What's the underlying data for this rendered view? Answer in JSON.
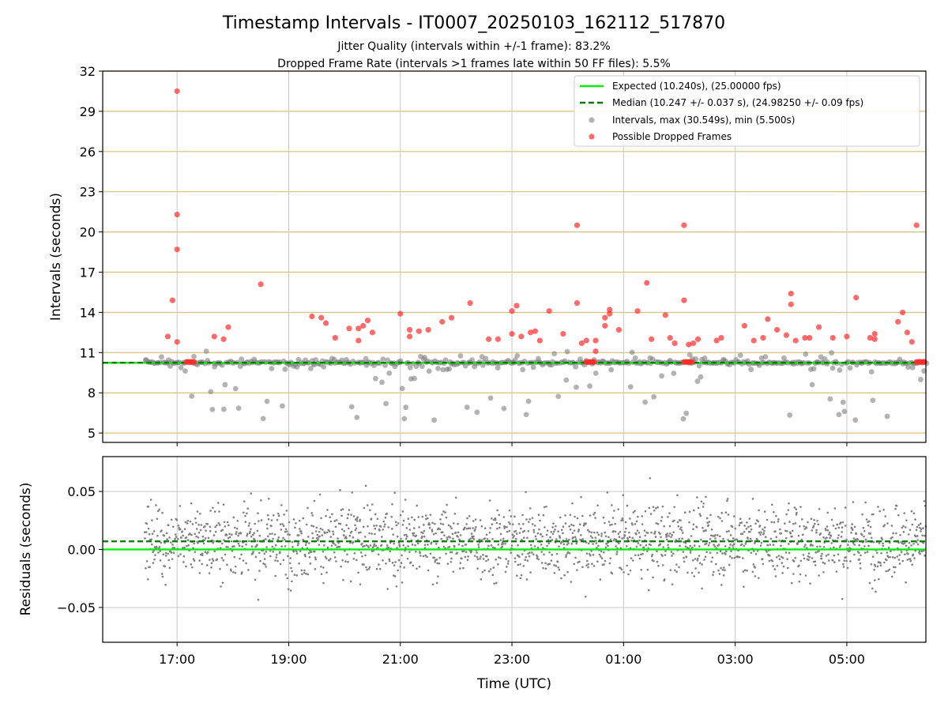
{
  "figure": {
    "title": "Timestamp Intervals - IT0007_20250103_162112_517870",
    "subtitle_1": "Jitter Quality (intervals within +/-1 frame): 83.2%",
    "subtitle_2": "Dropped Frame Rate (intervals >1 frames late within 50 FF files): 5.5%"
  },
  "legend": {
    "expected": "Expected (10.240s), (25.00000 fps)",
    "median": "Median (10.247 +/- 0.037 s), (24.98250 +/- 0.09 fps)",
    "intervals": "Intervals, max (30.549s), min (5.500s)",
    "dropped": "Possible Dropped Frames"
  },
  "colors": {
    "expected": "#00ee00",
    "median": "#007a00",
    "intervals": "#808080",
    "dropped": "#ff2b2b",
    "hgrid": "#d6c07a",
    "vgrid": "#c8c8c8"
  },
  "chart_data": [
    {
      "type": "scatter",
      "name_ref": "top-panel",
      "xlabel": "",
      "ylabel": "Intervals (seconds)",
      "x_range": [
        "15:40",
        "06:25"
      ],
      "ylim": [
        4.3,
        32
      ],
      "yticks": [
        5,
        8,
        11,
        14,
        17,
        20,
        23,
        26,
        29,
        32
      ],
      "ytick_labels": [
        "5",
        "8",
        "11",
        "14",
        "17",
        "20",
        "23",
        "26",
        "29",
        "32"
      ],
      "hlines": {
        "expected": 10.24,
        "median": 10.247
      },
      "grid": "horizontal and vertical",
      "legend_position": "top-right",
      "series": [
        {
          "name": "Possible Dropped Frames",
          "points": [
            [
              "17:00",
              30.5
            ],
            [
              "17:00",
              21.3
            ],
            [
              "17:00",
              18.7
            ],
            [
              "16:55",
              14.9
            ],
            [
              "16:50",
              12.2
            ],
            [
              "17:00",
              11.8
            ],
            [
              "17:40",
              12.2
            ],
            [
              "17:50",
              12.0
            ],
            [
              "17:55",
              12.9
            ],
            [
              "18:30",
              16.1
            ],
            [
              "19:25",
              13.7
            ],
            [
              "19:35",
              13.6
            ],
            [
              "19:40",
              13.2
            ],
            [
              "19:50",
              12.1
            ],
            [
              "20:05",
              12.8
            ],
            [
              "20:15",
              12.8
            ],
            [
              "20:15",
              11.9
            ],
            [
              "20:20",
              13.0
            ],
            [
              "20:25",
              13.4
            ],
            [
              "20:30",
              12.5
            ],
            [
              "21:00",
              13.9
            ],
            [
              "21:10",
              12.7
            ],
            [
              "21:10",
              12.2
            ],
            [
              "21:20",
              12.6
            ],
            [
              "21:30",
              12.7
            ],
            [
              "21:45",
              13.3
            ],
            [
              "21:55",
              13.6
            ],
            [
              "22:15",
              14.7
            ],
            [
              "22:35",
              12.0
            ],
            [
              "22:45",
              12.0
            ],
            [
              "23:00",
              12.4
            ],
            [
              "23:00",
              14.1
            ],
            [
              "23:05",
              14.5
            ],
            [
              "23:10",
              12.2
            ],
            [
              "23:20",
              12.5
            ],
            [
              "23:25",
              12.6
            ],
            [
              "23:30",
              11.9
            ],
            [
              "23:40",
              14.1
            ],
            [
              "23:55",
              12.4
            ],
            [
              "00:10",
              14.7
            ],
            [
              "00:15",
              11.7
            ],
            [
              "00:20",
              11.9
            ],
            [
              "00:30",
              11.9
            ],
            [
              "00:30",
              11.1
            ],
            [
              "00:40",
              13.0
            ],
            [
              "00:40",
              13.6
            ],
            [
              "00:45",
              14.2
            ],
            [
              "00:45",
              13.9
            ],
            [
              "00:55",
              12.7
            ],
            [
              "00:10",
              20.5
            ],
            [
              "01:15",
              14.1
            ],
            [
              "01:25",
              16.2
            ],
            [
              "01:30",
              12.0
            ],
            [
              "01:45",
              13.8
            ],
            [
              "01:50",
              12.1
            ],
            [
              "01:55",
              11.7
            ],
            [
              "02:05",
              14.9
            ],
            [
              "02:05",
              20.5
            ],
            [
              "02:10",
              11.6
            ],
            [
              "02:15",
              11.7
            ],
            [
              "02:20",
              12.0
            ],
            [
              "02:40",
              11.9
            ],
            [
              "02:45",
              12.1
            ],
            [
              "03:10",
              13.0
            ],
            [
              "03:20",
              11.9
            ],
            [
              "03:30",
              12.1
            ],
            [
              "03:35",
              13.5
            ],
            [
              "03:45",
              12.7
            ],
            [
              "03:55",
              12.3
            ],
            [
              "04:00",
              15.4
            ],
            [
              "04:00",
              14.6
            ],
            [
              "04:05",
              11.9
            ],
            [
              "04:15",
              12.1
            ],
            [
              "04:20",
              12.1
            ],
            [
              "04:30",
              12.9
            ],
            [
              "04:45",
              12.1
            ],
            [
              "05:00",
              12.2
            ],
            [
              "05:10",
              15.1
            ],
            [
              "05:25",
              12.1
            ],
            [
              "05:30",
              12.4
            ],
            [
              "05:30",
              12.0
            ],
            [
              "05:55",
              13.3
            ],
            [
              "06:00",
              14.0
            ],
            [
              "06:05",
              12.5
            ],
            [
              "06:10",
              11.8
            ],
            [
              "06:15",
              20.5
            ]
          ]
        }
      ]
    },
    {
      "type": "scatter",
      "name_ref": "bottom-panel",
      "xlabel": "Time (UTC)",
      "ylabel": "Residuals (seconds)",
      "x_range": [
        "15:40",
        "06:25"
      ],
      "ylim": [
        -0.08,
        0.08
      ],
      "yticks": [
        -0.05,
        0.0,
        0.05
      ],
      "ytick_labels": [
        "−0.05",
        "0.00",
        "0.05"
      ],
      "xticks": [
        "17:00",
        "19:00",
        "21:00",
        "23:00",
        "01:00",
        "03:00",
        "05:00"
      ],
      "hlines": {
        "expected": 0.0,
        "median": 0.007
      },
      "residual_spread_sd": 0.025,
      "grid": "horizontal and vertical"
    }
  ]
}
